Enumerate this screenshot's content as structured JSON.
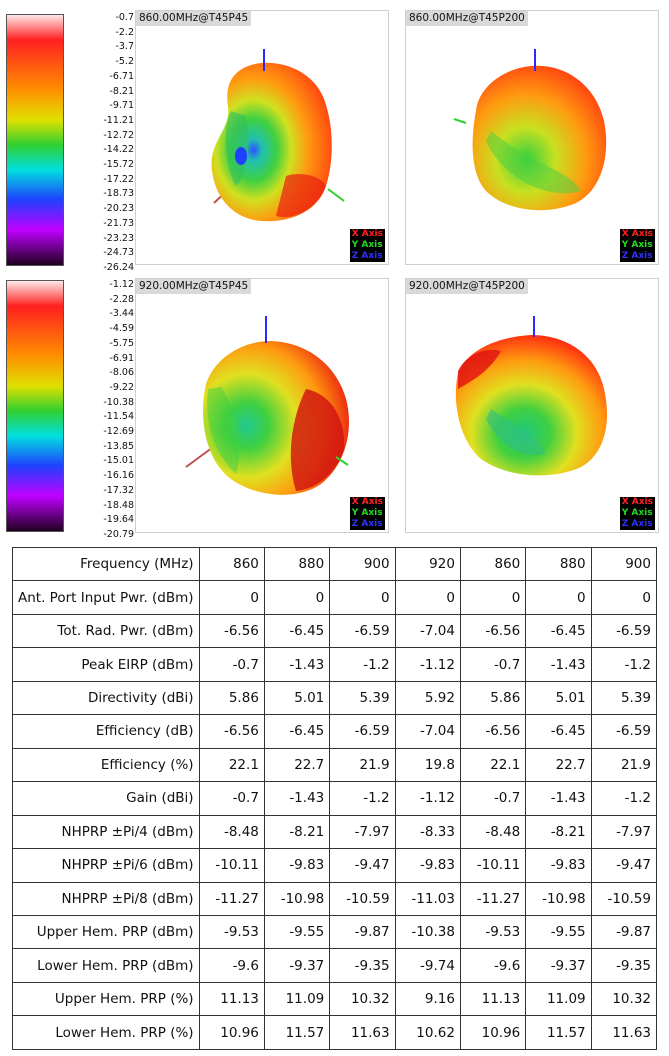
{
  "scale_top": {
    "labels": [
      "-0.7",
      "-2.2",
      "-3.7",
      "-5.2",
      "-6.71",
      "-8.21",
      "-9.71",
      "-11.21",
      "-12.72",
      "-14.22",
      "-15.72",
      "-17.22",
      "-18.73",
      "-20.23",
      "-21.73",
      "-23.23",
      "-24.73",
      "-26.24"
    ]
  },
  "scale_bottom": {
    "labels": [
      "-1.12",
      "-2.28",
      "-3.44",
      "-4.59",
      "-5.75",
      "-6.91",
      "-8.06",
      "-9.22",
      "-10.38",
      "-11.54",
      "-12.69",
      "-13.85",
      "-15.01",
      "-16.16",
      "-17.32",
      "-18.48",
      "-19.64",
      "-20.79"
    ]
  },
  "plots": [
    {
      "title": "860.00MHz@T45P45"
    },
    {
      "title": "860.00MHz@T45P200"
    },
    {
      "title": "920.00MHz@T45P45"
    },
    {
      "title": "920.00MHz@T45P200"
    }
  ],
  "axis_legend": {
    "x": "X Axis",
    "y": "Y Axis",
    "z": "Z Axis",
    "x_color": "#ff2020",
    "y_color": "#22dd22",
    "z_color": "#2020ff"
  },
  "table": {
    "rows": [
      {
        "label": "Frequency  (MHz)",
        "values": [
          "860",
          "880",
          "900",
          "920",
          "860",
          "880",
          "900"
        ]
      },
      {
        "label": "Ant. Port Input Pwr. (dBm)",
        "values": [
          "0",
          "0",
          "0",
          "0",
          "0",
          "0",
          "0"
        ]
      },
      {
        "label": "Tot. Rad. Pwr. (dBm)",
        "values": [
          "-6.56",
          "-6.45",
          "-6.59",
          "-7.04",
          "-6.56",
          "-6.45",
          "-6.59"
        ]
      },
      {
        "label": "Peak EIRP  (dBm)",
        "values": [
          "-0.7",
          "-1.43",
          "-1.2",
          "-1.12",
          "-0.7",
          "-1.43",
          "-1.2"
        ]
      },
      {
        "label": "Directivity  (dBi)",
        "values": [
          "5.86",
          "5.01",
          "5.39",
          "5.92",
          "5.86",
          "5.01",
          "5.39"
        ]
      },
      {
        "label": "Efficiency  (dB)",
        "values": [
          "-6.56",
          "-6.45",
          "-6.59",
          "-7.04",
          "-6.56",
          "-6.45",
          "-6.59"
        ]
      },
      {
        "label": "Efficiency  (%)",
        "values": [
          "22.1",
          "22.7",
          "21.9",
          "19.8",
          "22.1",
          "22.7",
          "21.9"
        ]
      },
      {
        "label": "Gain  (dBi)",
        "values": [
          "-0.7",
          "-1.43",
          "-1.2",
          "-1.12",
          "-0.7",
          "-1.43",
          "-1.2"
        ]
      },
      {
        "label": "NHPRP ±Pi/4  (dBm)",
        "values": [
          "-8.48",
          "-8.21",
          "-7.97",
          "-8.33",
          "-8.48",
          "-8.21",
          "-7.97"
        ]
      },
      {
        "label": "NHPRP ±Pi/6  (dBm)",
        "values": [
          "-10.11",
          "-9.83",
          "-9.47",
          "-9.83",
          "-10.11",
          "-9.83",
          "-9.47"
        ]
      },
      {
        "label": "NHPRP ±Pi/8  (dBm)",
        "values": [
          "-11.27",
          "-10.98",
          "-10.59",
          "-11.03",
          "-11.27",
          "-10.98",
          "-10.59"
        ]
      },
      {
        "label": "Upper Hem. PRP  (dBm)",
        "values": [
          "-9.53",
          "-9.55",
          "-9.87",
          "-10.38",
          "-9.53",
          "-9.55",
          "-9.87"
        ]
      },
      {
        "label": "Lower Hem. PRP  (dBm)",
        "values": [
          "-9.6",
          "-9.37",
          "-9.35",
          "-9.74",
          "-9.6",
          "-9.37",
          "-9.35"
        ]
      },
      {
        "label": "Upper Hem. PRP  (%)",
        "values": [
          "11.13",
          "11.09",
          "10.32",
          "9.16",
          "11.13",
          "11.09",
          "10.32"
        ]
      },
      {
        "label": "Lower Hem. PRP  (%)",
        "values": [
          "10.96",
          "11.57",
          "11.63",
          "10.62",
          "10.96",
          "11.57",
          "11.63"
        ]
      }
    ]
  }
}
